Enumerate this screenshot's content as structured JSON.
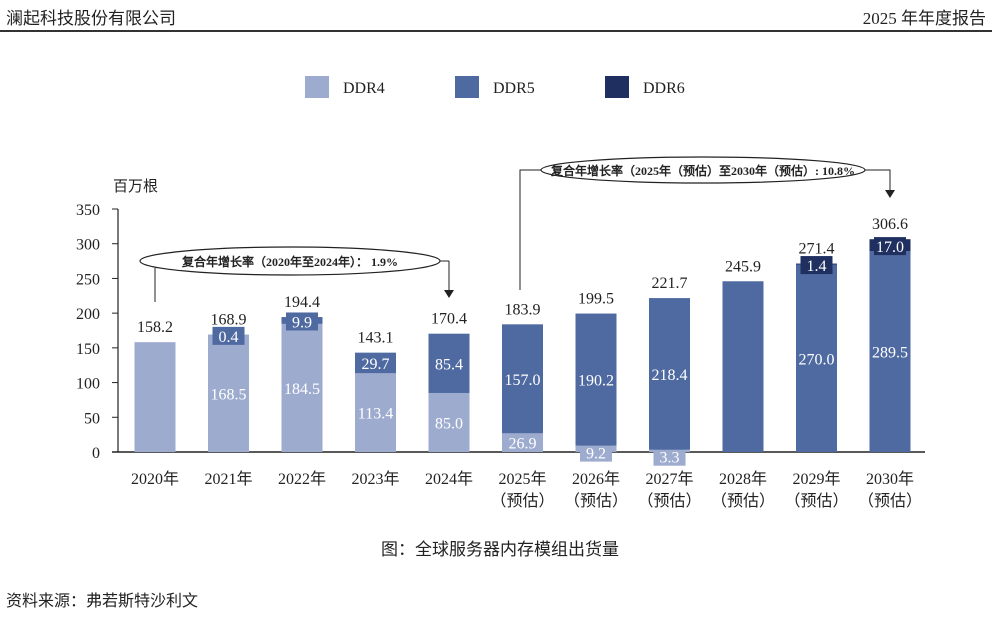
{
  "header": {
    "company": "澜起科技股份有限公司",
    "report": "2025 年年度报告"
  },
  "caption": "图：全球服务器内存模组出货量",
  "source": "资料来源：弗若斯特沙利文",
  "chart_data": {
    "type": "bar",
    "stacked": true,
    "ylabel": "百万根",
    "ylim": [
      0,
      350
    ],
    "yticks": [
      0,
      50,
      100,
      150,
      200,
      250,
      300,
      350
    ],
    "grid": false,
    "legend_position": "top",
    "categories": [
      "2020年",
      "2021年",
      "2022年",
      "2023年",
      "2024年",
      "2025年\n（预估）",
      "2026年\n（预估）",
      "2027年\n（预估）",
      "2028年\n（预估）",
      "2029年\n（预估）",
      "2030年\n（预估）"
    ],
    "series": [
      {
        "name": "DDR4",
        "color": "#9dabcf",
        "values": [
          158.2,
          168.5,
          184.5,
          113.4,
          85.0,
          26.9,
          9.2,
          3.3,
          0,
          0,
          0
        ],
        "show_labels": [
          false,
          true,
          true,
          true,
          true,
          true,
          true,
          true,
          false,
          false,
          false
        ]
      },
      {
        "name": "DDR5",
        "color": "#4f6aa0",
        "values": [
          0,
          0.4,
          9.9,
          29.7,
          85.4,
          157.0,
          190.2,
          218.4,
          245.9,
          270.0,
          289.5
        ],
        "show_labels": [
          false,
          true,
          true,
          true,
          true,
          true,
          true,
          true,
          false,
          true,
          true
        ]
      },
      {
        "name": "DDR6",
        "color": "#1f2f60",
        "values": [
          0,
          0,
          0,
          0,
          0,
          0,
          0,
          0,
          0,
          1.4,
          17.0
        ],
        "show_labels": [
          false,
          false,
          false,
          false,
          false,
          false,
          false,
          false,
          false,
          true,
          true
        ]
      }
    ],
    "totals": [
      158.2,
      168.9,
      194.4,
      143.1,
      170.4,
      183.9,
      199.5,
      221.7,
      245.9,
      271.4,
      306.6
    ],
    "annotations": [
      {
        "text": "复合年增长率（2020年至2024年）： 1.9%",
        "from": "2020年",
        "to": "2024年"
      },
      {
        "text": "复合年增长率（2025年（预估）至2030年（预估）: 10.8%",
        "from": "2025年",
        "to": "2030年"
      }
    ]
  }
}
